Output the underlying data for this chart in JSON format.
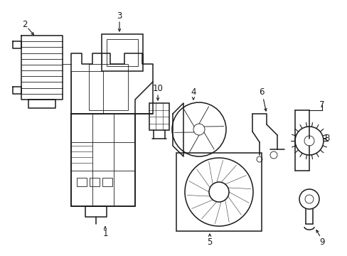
{
  "background_color": "#ffffff",
  "line_color": "#1a1a1a",
  "figsize": [
    4.89,
    3.6
  ],
  "dpi": 100,
  "xlim": [
    0,
    489
  ],
  "ylim": [
    0,
    360
  ]
}
